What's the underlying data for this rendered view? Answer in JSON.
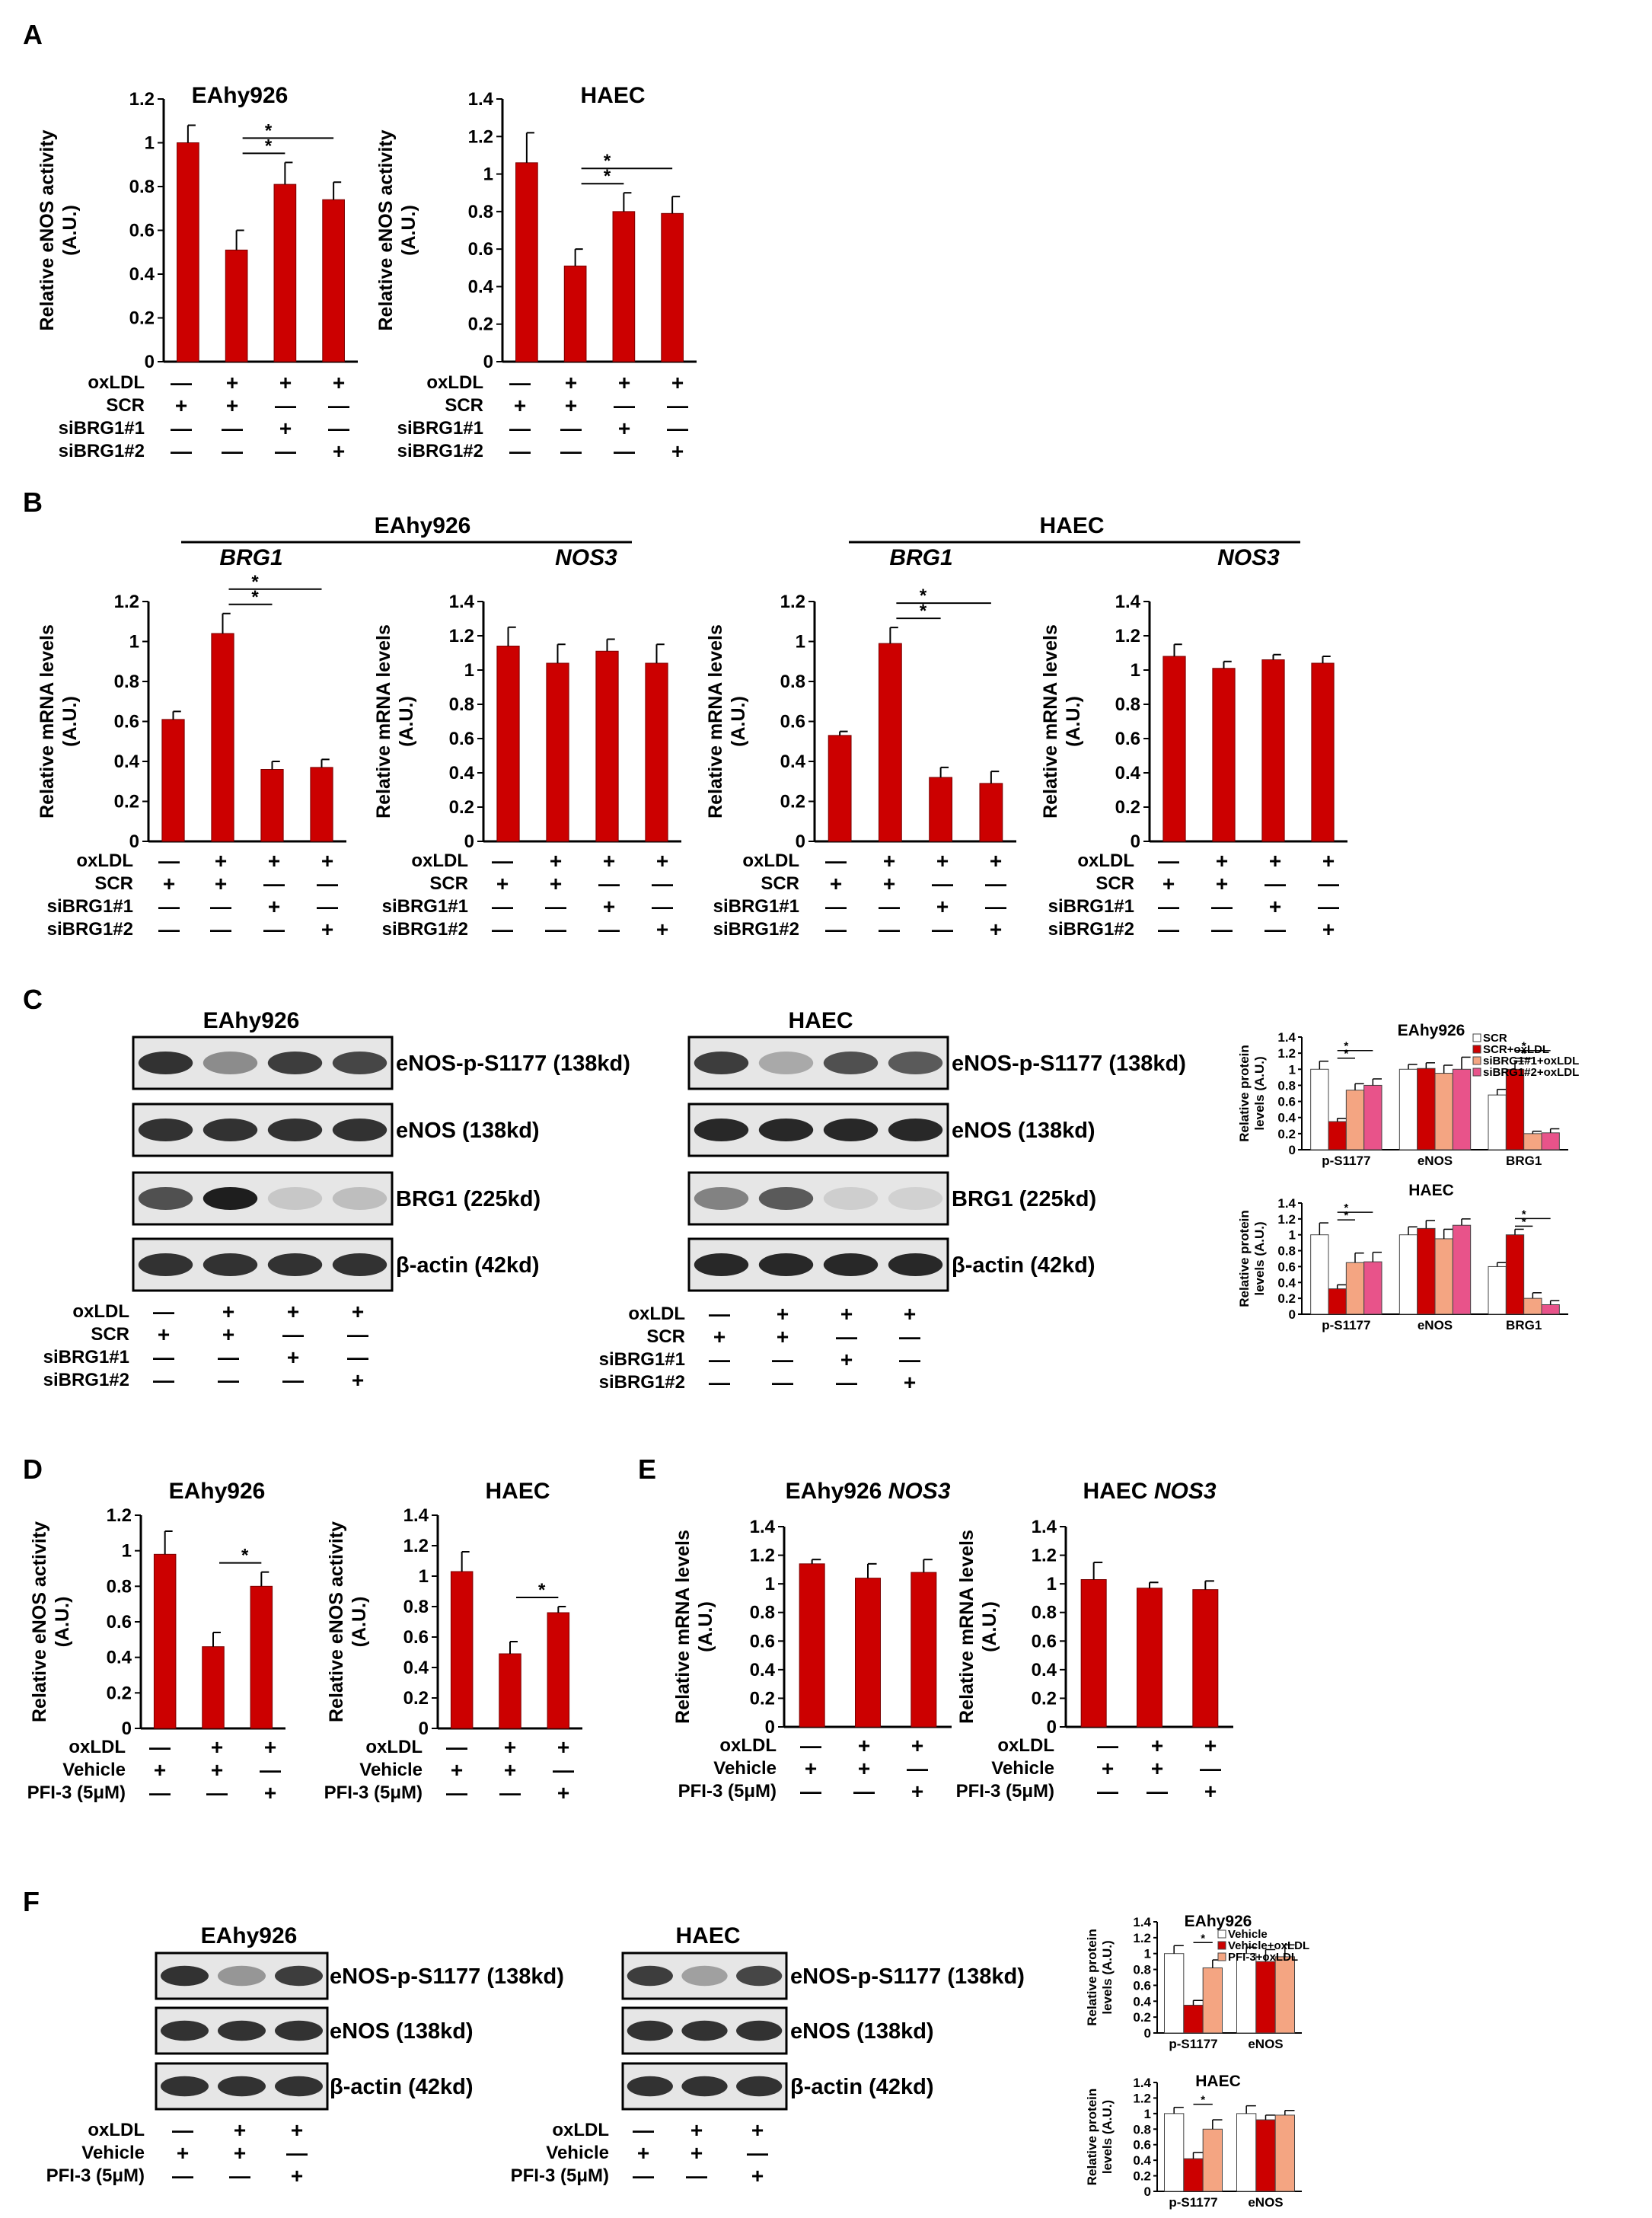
{
  "colors": {
    "red": "#cc0000",
    "pink": "#f08e8e",
    "orange": "#f4a582",
    "magenta": "#e8538a",
    "white": "#ffffff",
    "axis": "#000000",
    "blot_bg": "#e6e6e6",
    "band": "#1e1e1e"
  },
  "panels": {
    "A": "A",
    "B": "B",
    "C": "C",
    "D": "D",
    "E": "E",
    "F": "F"
  },
  "groups": {
    "b_eahy": "EAhy926",
    "b_haec": "HAEC"
  },
  "conditions": {
    "four": {
      "rows": [
        {
          "label": "oxLDL",
          "signs": [
            "—",
            "+",
            "+",
            "+"
          ]
        },
        {
          "label": "SCR",
          "signs": [
            "+",
            "+",
            "—",
            "—"
          ]
        },
        {
          "label": "siBRG1#1",
          "signs": [
            "—",
            "—",
            "+",
            "—"
          ]
        },
        {
          "label": "siBRG1#2",
          "signs": [
            "—",
            "—",
            "—",
            "+"
          ]
        }
      ]
    },
    "three": {
      "rows": [
        {
          "label": "oxLDL",
          "signs": [
            "—",
            "+",
            "+"
          ]
        },
        {
          "label": "Vehicle",
          "signs": [
            "+",
            "+",
            "—"
          ]
        },
        {
          "label": "PFI-3 (5μM)",
          "signs": [
            "—",
            "—",
            "+"
          ]
        }
      ]
    }
  },
  "chart_data": [
    {
      "id": "A1",
      "type": "bar",
      "title": "EAhy926",
      "ylabel_1": "Relative eNOS activity",
      "ylabel_2": "(A.U.)",
      "ylim": [
        0,
        1.2
      ],
      "yticks": [
        "0",
        "0.2",
        "0.4",
        "0.6",
        "0.8",
        "1",
        "1.2"
      ],
      "values": [
        1.0,
        0.51,
        0.81,
        0.74
      ],
      "errors": [
        0.08,
        0.09,
        0.1,
        0.08
      ],
      "sig": [
        {
          "from": 1,
          "to": 2,
          "label": "*"
        },
        {
          "from": 1,
          "to": 3,
          "label": "*"
        }
      ]
    },
    {
      "id": "A2",
      "type": "bar",
      "title": "HAEC",
      "ylabel_1": "Relative eNOS activity",
      "ylabel_2": "(A.U.)",
      "ylim": [
        0,
        1.4
      ],
      "yticks": [
        "0",
        "0.2",
        "0.4",
        "0.6",
        "0.8",
        "1",
        "1.2",
        "1.4"
      ],
      "values": [
        1.06,
        0.51,
        0.8,
        0.79
      ],
      "errors": [
        0.16,
        0.09,
        0.1,
        0.09
      ],
      "sig": [
        {
          "from": 1,
          "to": 2,
          "label": "*"
        },
        {
          "from": 1,
          "to": 3,
          "label": "*"
        }
      ]
    },
    {
      "id": "B1",
      "type": "bar",
      "title": "BRG1",
      "ylabel_1": "Relative mRNA levels",
      "ylabel_2": "(A.U.)",
      "ylim": [
        0,
        1.2
      ],
      "yticks": [
        "0",
        "0.2",
        "0.4",
        "0.6",
        "0.8",
        "1",
        "1.2"
      ],
      "values": [
        0.61,
        1.04,
        0.36,
        0.37
      ],
      "errors": [
        0.04,
        0.1,
        0.04,
        0.04
      ],
      "sig": [
        {
          "from": 1,
          "to": 2,
          "label": "*"
        },
        {
          "from": 1,
          "to": 3,
          "label": "*"
        }
      ]
    },
    {
      "id": "B2",
      "type": "bar",
      "title": "NOS3",
      "ylabel_1": "Relative mRNA levels",
      "ylabel_2": "(A.U.)",
      "ylim": [
        0,
        1.4
      ],
      "yticks": [
        "0",
        "0.2",
        "0.4",
        "0.6",
        "0.8",
        "1",
        "1.2",
        "1.4"
      ],
      "values": [
        1.14,
        1.04,
        1.11,
        1.04
      ],
      "errors": [
        0.11,
        0.11,
        0.07,
        0.11
      ],
      "sig": []
    },
    {
      "id": "B3",
      "type": "bar",
      "title": "BRG1",
      "ylabel_1": "Relative mRNA levels",
      "ylabel_2": "(A.U.)",
      "ylim": [
        0,
        1.2
      ],
      "yticks": [
        "0",
        "0.2",
        "0.4",
        "0.6",
        "0.8",
        "1",
        "1.2"
      ],
      "values": [
        0.53,
        0.99,
        0.32,
        0.29
      ],
      "errors": [
        0.02,
        0.08,
        0.05,
        0.06
      ],
      "sig": [
        {
          "from": 1,
          "to": 2,
          "label": "*"
        },
        {
          "from": 1,
          "to": 3,
          "label": "*"
        }
      ]
    },
    {
      "id": "B4",
      "type": "bar",
      "title": "NOS3",
      "ylabel_1": "Relative mRNA levels",
      "ylabel_2": "(A.U.)",
      "ylim": [
        0,
        1.4
      ],
      "yticks": [
        "0",
        "0.2",
        "0.4",
        "0.6",
        "0.8",
        "1",
        "1.2",
        "1.4"
      ],
      "values": [
        1.08,
        1.01,
        1.06,
        1.04
      ],
      "errors": [
        0.07,
        0.04,
        0.03,
        0.04
      ],
      "sig": []
    },
    {
      "id": "C1",
      "type": "grouped-bar",
      "title": "EAhy926",
      "ylabel_1": "Relative protein",
      "ylabel_2": "levels (A.U.)",
      "ylim": [
        0,
        1.4
      ],
      "yticks": [
        "0",
        "0.2",
        "0.4",
        "0.6",
        "0.8",
        "1",
        "1.2",
        "1.4"
      ],
      "categories": [
        "p-S1177",
        "eNOS",
        "BRG1"
      ],
      "series": [
        {
          "name": "SCR",
          "color": "#ffffff",
          "values": [
            1.0,
            1.0,
            0.68
          ],
          "errors": [
            0.1,
            0.06,
            0.07
          ]
        },
        {
          "name": "SCR+oxLDL",
          "color": "#cc0000",
          "values": [
            0.35,
            1.01,
            1.0
          ],
          "errors": [
            0.04,
            0.07,
            0.1
          ]
        },
        {
          "name": "siBRG1#1+oxLDL",
          "color": "#f4a582",
          "values": [
            0.74,
            0.95,
            0.2
          ],
          "errors": [
            0.08,
            0.1,
            0.03
          ]
        },
        {
          "name": "siBRG1#2+oxLDL",
          "color": "#e8538a",
          "values": [
            0.8,
            1.0,
            0.21
          ],
          "errors": [
            0.08,
            0.15,
            0.05
          ]
        }
      ],
      "legend": "top-right",
      "sig": [
        {
          "cat": 0,
          "from": 1,
          "to": 2
        },
        {
          "cat": 0,
          "from": 1,
          "to": 3
        },
        {
          "cat": 2,
          "from": 1,
          "to": 2
        },
        {
          "cat": 2,
          "from": 1,
          "to": 3
        }
      ]
    },
    {
      "id": "C2",
      "type": "grouped-bar",
      "title": "HAEC",
      "ylabel_1": "Relative protein",
      "ylabel_2": "levels (A.U.)",
      "ylim": [
        0,
        1.4
      ],
      "yticks": [
        "0",
        "0.2",
        "0.4",
        "0.6",
        "0.8",
        "1",
        "1.2",
        "1.4"
      ],
      "categories": [
        "p-S1177",
        "eNOS",
        "BRG1"
      ],
      "series": [
        {
          "name": "SCR",
          "color": "#ffffff",
          "values": [
            1.0,
            1.0,
            0.6
          ],
          "errors": [
            0.15,
            0.1,
            0.05
          ]
        },
        {
          "name": "SCR+oxLDL",
          "color": "#cc0000",
          "values": [
            0.32,
            1.08,
            1.0
          ],
          "errors": [
            0.05,
            0.1,
            0.07
          ]
        },
        {
          "name": "siBRG1#1+oxLDL",
          "color": "#f4a582",
          "values": [
            0.65,
            0.95,
            0.2
          ],
          "errors": [
            0.12,
            0.12,
            0.07
          ]
        },
        {
          "name": "siBRG1#2+oxLDL",
          "color": "#e8538a",
          "values": [
            0.66,
            1.12,
            0.12
          ],
          "errors": [
            0.12,
            0.08,
            0.05
          ]
        }
      ],
      "sig": [
        {
          "cat": 0,
          "from": 1,
          "to": 2
        },
        {
          "cat": 0,
          "from": 1,
          "to": 3
        },
        {
          "cat": 2,
          "from": 1,
          "to": 2
        },
        {
          "cat": 2,
          "from": 1,
          "to": 3
        }
      ]
    },
    {
      "id": "D1",
      "type": "bar",
      "title": "EAhy926",
      "ylabel_1": "Relative eNOS activity",
      "ylabel_2": "(A.U.)",
      "ylim": [
        0,
        1.2
      ],
      "yticks": [
        "0",
        "0.2",
        "0.4",
        "0.6",
        "0.8",
        "1",
        "1.2"
      ],
      "values": [
        0.98,
        0.46,
        0.8
      ],
      "errors": [
        0.13,
        0.08,
        0.08
      ],
      "sig": [
        {
          "from": 1,
          "to": 2,
          "label": "*"
        }
      ]
    },
    {
      "id": "D2",
      "type": "bar",
      "title": "HAEC",
      "ylabel_1": "Relative eNOS activity",
      "ylabel_2": "(A.U.)",
      "ylim": [
        0,
        1.4
      ],
      "yticks": [
        "0",
        "0.2",
        "0.4",
        "0.6",
        "0.8",
        "1",
        "1.2",
        "1.4"
      ],
      "values": [
        1.03,
        0.49,
        0.76
      ],
      "errors": [
        0.13,
        0.08,
        0.04
      ],
      "sig": [
        {
          "from": 1,
          "to": 2,
          "label": "*"
        }
      ]
    },
    {
      "id": "E1",
      "type": "bar",
      "title": "EAhy926 NOS3",
      "ylabel_1": "Relative mRNA levels",
      "ylabel_2": "(A.U.)",
      "ylim": [
        0,
        1.4
      ],
      "yticks": [
        "0",
        "0.2",
        "0.4",
        "0.6",
        "0.8",
        "1",
        "1.2",
        "1.4"
      ],
      "values": [
        1.14,
        1.04,
        1.08
      ],
      "errors": [
        0.03,
        0.1,
        0.09
      ],
      "sig": []
    },
    {
      "id": "E2",
      "type": "bar",
      "title": "HAEC NOS3",
      "ylabel_1": "Relative mRNA levels",
      "ylabel_2": "(A.U.)",
      "ylim": [
        0,
        1.4
      ],
      "yticks": [
        "0",
        "0.2",
        "0.4",
        "0.6",
        "0.8",
        "1",
        "1.2",
        "1.4"
      ],
      "values": [
        1.03,
        0.97,
        0.96
      ],
      "errors": [
        0.12,
        0.04,
        0.06
      ],
      "sig": []
    },
    {
      "id": "F1",
      "type": "grouped-bar",
      "title": "EAhy926",
      "ylabel_1": "Relative protein",
      "ylabel_2": "levels (A.U.)",
      "ylim": [
        0,
        1.4
      ],
      "yticks": [
        "0",
        "0.2",
        "0.4",
        "0.6",
        "0.8",
        "1",
        "1.2",
        "1.4"
      ],
      "categories": [
        "p-S1177",
        "eNOS"
      ],
      "series": [
        {
          "name": "Vehicle",
          "color": "#ffffff",
          "values": [
            1.0,
            1.0
          ],
          "errors": [
            0.1,
            0.08
          ]
        },
        {
          "name": "Vehicle+oxLDL",
          "color": "#cc0000",
          "values": [
            0.35,
            0.9
          ],
          "errors": [
            0.06,
            0.15
          ]
        },
        {
          "name": "PFI-3+oxLDL",
          "color": "#f4a582",
          "values": [
            0.82,
            0.96
          ],
          "errors": [
            0.1,
            0.15
          ]
        }
      ],
      "legend": "top-right",
      "sig": [
        {
          "cat": 0,
          "from": 1,
          "to": 2
        }
      ]
    },
    {
      "id": "F2",
      "type": "grouped-bar",
      "title": "HAEC",
      "ylabel_1": "Relative protein",
      "ylabel_2": "levels (A.U.)",
      "ylim": [
        0,
        1.4
      ],
      "yticks": [
        "0",
        "0.2",
        "0.4",
        "0.6",
        "0.8",
        "1",
        "1.2",
        "1.4"
      ],
      "categories": [
        "p-S1177",
        "eNOS"
      ],
      "series": [
        {
          "name": "Vehicle",
          "color": "#ffffff",
          "values": [
            1.0,
            1.0
          ],
          "errors": [
            0.08,
            0.1
          ]
        },
        {
          "name": "Vehicle+oxLDL",
          "color": "#cc0000",
          "values": [
            0.42,
            0.92
          ],
          "errors": [
            0.08,
            0.06
          ]
        },
        {
          "name": "PFI-3+oxLDL",
          "color": "#f4a582",
          "values": [
            0.8,
            0.98
          ],
          "errors": [
            0.12,
            0.06
          ]
        }
      ],
      "sig": [
        {
          "cat": 0,
          "from": 1,
          "to": 2
        }
      ]
    }
  ],
  "blots": {
    "C1": {
      "title": "EAhy926",
      "strips": [
        {
          "label": "eNOS-p-S1177 (138kd)",
          "bands": [
            0.9,
            0.45,
            0.85,
            0.8
          ]
        },
        {
          "label": "eNOS (138kd)",
          "bands": [
            0.9,
            0.9,
            0.9,
            0.9
          ]
        },
        {
          "label": "BRG1 (225kd)",
          "bands": [
            0.75,
            1.0,
            0.15,
            0.2
          ]
        },
        {
          "label": "β-actin (42kd)",
          "bands": [
            0.9,
            0.9,
            0.9,
            0.9
          ]
        }
      ]
    },
    "C2": {
      "title": "HAEC",
      "strips": [
        {
          "label": "eNOS-p-S1177 (138kd)",
          "bands": [
            0.85,
            0.3,
            0.75,
            0.7
          ]
        },
        {
          "label": "eNOS (138kd)",
          "bands": [
            0.95,
            0.95,
            0.95,
            0.95
          ]
        },
        {
          "label": "BRG1 (225kd)",
          "bands": [
            0.5,
            0.7,
            0.12,
            0.1
          ]
        },
        {
          "label": "β-actin (42kd)",
          "bands": [
            0.95,
            0.95,
            0.95,
            0.95
          ]
        }
      ]
    },
    "F1": {
      "title": "EAhy926",
      "strips": [
        {
          "label": "eNOS-p-S1177 (138kd)",
          "bands": [
            0.9,
            0.4,
            0.85
          ]
        },
        {
          "label": "eNOS (138kd)",
          "bands": [
            0.9,
            0.9,
            0.9
          ]
        },
        {
          "label": "β-actin (42kd)",
          "bands": [
            0.9,
            0.9,
            0.9
          ]
        }
      ]
    },
    "F2": {
      "title": "HAEC",
      "strips": [
        {
          "label": "eNOS-p-S1177 (138kd)",
          "bands": [
            0.85,
            0.35,
            0.8
          ]
        },
        {
          "label": "eNOS (138kd)",
          "bands": [
            0.9,
            0.9,
            0.9
          ]
        },
        {
          "label": "β-actin (42kd)",
          "bands": [
            0.9,
            0.9,
            0.9
          ]
        }
      ]
    }
  }
}
